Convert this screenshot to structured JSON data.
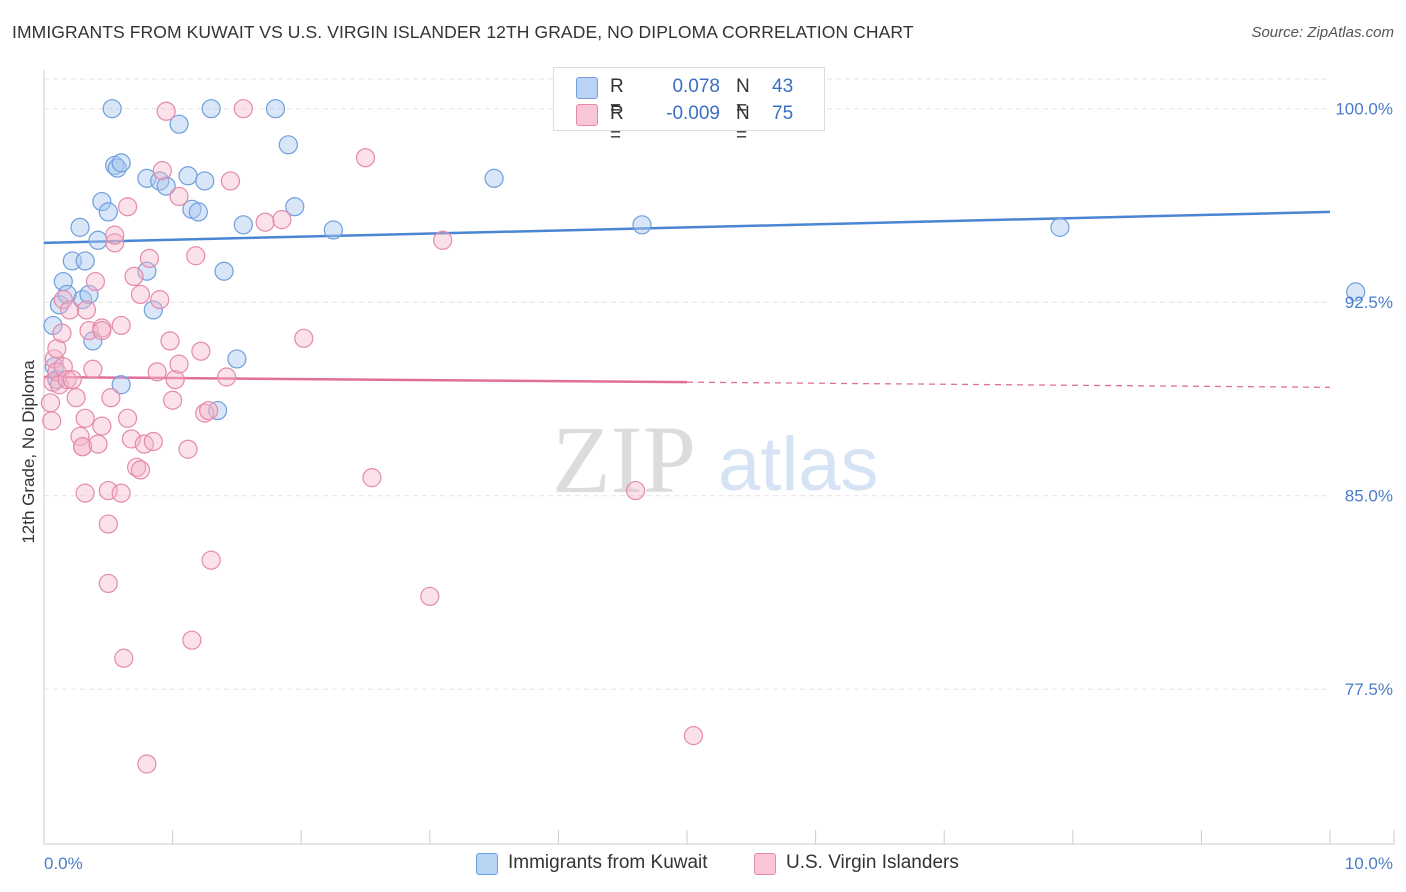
{
  "title": "IMMIGRANTS FROM KUWAIT VS U.S. VIRGIN ISLANDER 12TH GRADE, NO DIPLOMA CORRELATION CHART",
  "source": "Source: ZipAtlas.com",
  "watermark": {
    "zip": "ZIP",
    "atlas": "atlas"
  },
  "colors": {
    "blue": "#4a86d4",
    "blue_fill": "#a9c8f0",
    "pink": "#e0709a",
    "pink_fill": "#f5b3c8",
    "tick_text": "#4a7cc9",
    "grid": "#e3e3e3"
  },
  "legend": {
    "rows": [
      {
        "r_label": "R =",
        "r_value": "0.078",
        "n_label": "N =",
        "n_value": "43"
      },
      {
        "r_label": "R =",
        "r_value": "-0.009",
        "n_label": "N =",
        "n_value": "75"
      }
    ]
  },
  "bottom_legend": {
    "series1": "Immigrants from Kuwait",
    "series2": "U.S. Virgin Islanders"
  },
  "chart_data": {
    "type": "scatter",
    "title": "IMMIGRANTS FROM KUWAIT VS U.S. VIRGIN ISLANDER 12TH GRADE, NO DIPLOMA CORRELATION CHART",
    "xlabel": "",
    "ylabel": "12th Grade, No Diploma",
    "xlim": [
      0,
      10
    ],
    "ylim": [
      71.5,
      101.5
    ],
    "x_tick_labels": [
      "0.0%",
      "10.0%"
    ],
    "y_ticks": [
      100.0,
      92.5,
      85.0,
      77.5
    ],
    "y_tick_labels": [
      "100.0%",
      "92.5%",
      "85.0%",
      "77.5%"
    ],
    "series": [
      {
        "name": "Immigrants from Kuwait",
        "color": "#4a86d4",
        "r": 0.078,
        "n": 43,
        "trend": {
          "x": [
            0.0,
            10.0
          ],
          "y": [
            94.8,
            96.0
          ],
          "dashed_from": null
        },
        "points": [
          [
            0.07,
            91.6
          ],
          [
            0.08,
            90.0
          ],
          [
            0.1,
            89.5
          ],
          [
            0.12,
            92.4
          ],
          [
            0.15,
            93.3
          ],
          [
            0.18,
            92.8
          ],
          [
            0.22,
            94.1
          ],
          [
            0.28,
            95.4
          ],
          [
            0.3,
            92.6
          ],
          [
            0.32,
            94.1
          ],
          [
            0.35,
            92.8
          ],
          [
            0.38,
            91.0
          ],
          [
            0.42,
            94.9
          ],
          [
            0.45,
            96.4
          ],
          [
            0.5,
            96.0
          ],
          [
            0.53,
            100.0
          ],
          [
            0.55,
            97.8
          ],
          [
            0.57,
            97.7
          ],
          [
            0.6,
            97.9
          ],
          [
            0.6,
            89.3
          ],
          [
            0.8,
            97.3
          ],
          [
            0.8,
            93.7
          ],
          [
            0.85,
            92.2
          ],
          [
            0.9,
            97.2
          ],
          [
            0.95,
            97.0
          ],
          [
            1.05,
            99.4
          ],
          [
            1.12,
            97.4
          ],
          [
            1.15,
            96.1
          ],
          [
            1.2,
            96.0
          ],
          [
            1.25,
            97.2
          ],
          [
            1.3,
            100.0
          ],
          [
            1.35,
            88.3
          ],
          [
            1.4,
            93.7
          ],
          [
            1.5,
            90.3
          ],
          [
            1.55,
            95.5
          ],
          [
            1.8,
            100.0
          ],
          [
            1.9,
            98.6
          ],
          [
            1.95,
            96.2
          ],
          [
            2.25,
            95.3
          ],
          [
            3.5,
            97.3
          ],
          [
            4.65,
            95.5
          ],
          [
            7.9,
            95.4
          ],
          [
            10.2,
            92.9
          ]
        ]
      },
      {
        "name": "U.S. Virgin Islanders",
        "color": "#e0709a",
        "r": -0.009,
        "n": 75,
        "trend": {
          "x": [
            0.0,
            10.0
          ],
          "y": [
            89.6,
            89.2
          ],
          "dashed_from": 5.0
        },
        "points": [
          [
            0.05,
            88.6
          ],
          [
            0.06,
            87.9
          ],
          [
            0.07,
            89.4
          ],
          [
            0.08,
            90.3
          ],
          [
            0.1,
            89.8
          ],
          [
            0.1,
            90.7
          ],
          [
            0.12,
            89.3
          ],
          [
            0.14,
            91.3
          ],
          [
            0.15,
            92.6
          ],
          [
            0.15,
            90.0
          ],
          [
            0.18,
            89.5
          ],
          [
            0.2,
            92.2
          ],
          [
            0.22,
            89.5
          ],
          [
            0.25,
            88.8
          ],
          [
            0.28,
            87.3
          ],
          [
            0.3,
            86.9
          ],
          [
            0.3,
            86.9
          ],
          [
            0.32,
            85.1
          ],
          [
            0.32,
            88.0
          ],
          [
            0.33,
            92.2
          ],
          [
            0.35,
            91.4
          ],
          [
            0.38,
            89.9
          ],
          [
            0.4,
            93.3
          ],
          [
            0.42,
            87.0
          ],
          [
            0.45,
            91.5
          ],
          [
            0.45,
            91.4
          ],
          [
            0.45,
            87.7
          ],
          [
            0.5,
            85.2
          ],
          [
            0.5,
            83.9
          ],
          [
            0.5,
            81.6
          ],
          [
            0.52,
            88.8
          ],
          [
            0.55,
            94.8
          ],
          [
            0.55,
            95.1
          ],
          [
            0.6,
            91.6
          ],
          [
            0.6,
            85.1
          ],
          [
            0.62,
            78.7
          ],
          [
            0.65,
            96.2
          ],
          [
            0.65,
            88.0
          ],
          [
            0.68,
            87.2
          ],
          [
            0.7,
            93.5
          ],
          [
            0.72,
            86.1
          ],
          [
            0.75,
            92.8
          ],
          [
            0.75,
            86.0
          ],
          [
            0.78,
            87.0
          ],
          [
            0.8,
            74.6
          ],
          [
            0.82,
            94.2
          ],
          [
            0.85,
            87.1
          ],
          [
            0.88,
            89.8
          ],
          [
            0.9,
            92.6
          ],
          [
            0.92,
            97.6
          ],
          [
            0.95,
            99.9
          ],
          [
            0.98,
            91.0
          ],
          [
            1.0,
            88.7
          ],
          [
            1.02,
            89.5
          ],
          [
            1.05,
            90.1
          ],
          [
            1.05,
            96.6
          ],
          [
            1.12,
            86.8
          ],
          [
            1.15,
            79.4
          ],
          [
            1.18,
            94.3
          ],
          [
            1.22,
            90.6
          ],
          [
            1.25,
            88.2
          ],
          [
            1.28,
            88.3
          ],
          [
            1.3,
            82.5
          ],
          [
            1.42,
            89.6
          ],
          [
            1.45,
            97.2
          ],
          [
            1.55,
            100.0
          ],
          [
            1.72,
            95.6
          ],
          [
            1.85,
            95.7
          ],
          [
            2.02,
            91.1
          ],
          [
            2.5,
            98.1
          ],
          [
            2.55,
            85.7
          ],
          [
            3.0,
            81.1
          ],
          [
            3.1,
            94.9
          ],
          [
            4.6,
            85.2
          ],
          [
            5.05,
            75.7
          ]
        ]
      }
    ]
  }
}
